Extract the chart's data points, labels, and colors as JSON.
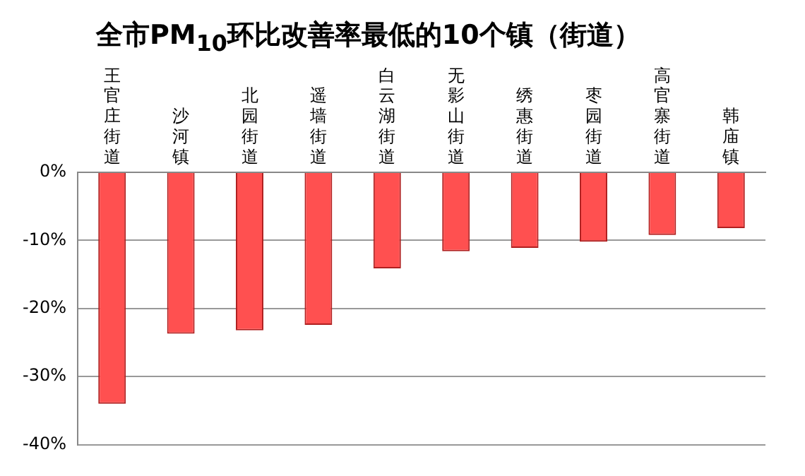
{
  "chart_data": {
    "type": "bar",
    "title": "全市PM$_{10}$环比改善率最低的10个镇（街道）",
    "categories": [
      "王官庄街道",
      "沙河镇",
      "北园街道",
      "遥墙街道",
      "白云湖街道",
      "无影山街道",
      "绣惠街道",
      "枣园街道",
      "高官寨街道",
      "韩庙镇"
    ],
    "values": [
      -34.0,
      -23.7,
      -23.2,
      -22.4,
      -14.1,
      -11.6,
      -11.1,
      -10.2,
      -9.2,
      -8.2
    ],
    "color": "#ff5050",
    "ylim": [
      -40,
      0
    ],
    "yticks": [
      {
        "value": 0,
        "label": "0%"
      },
      {
        "value": -10,
        "label": "-10%"
      },
      {
        "value": -20,
        "label": "-20%"
      },
      {
        "value": -30,
        "label": "-30%"
      },
      {
        "value": -40,
        "label": "-40%"
      }
    ],
    "grid": "y",
    "legend": false
  }
}
